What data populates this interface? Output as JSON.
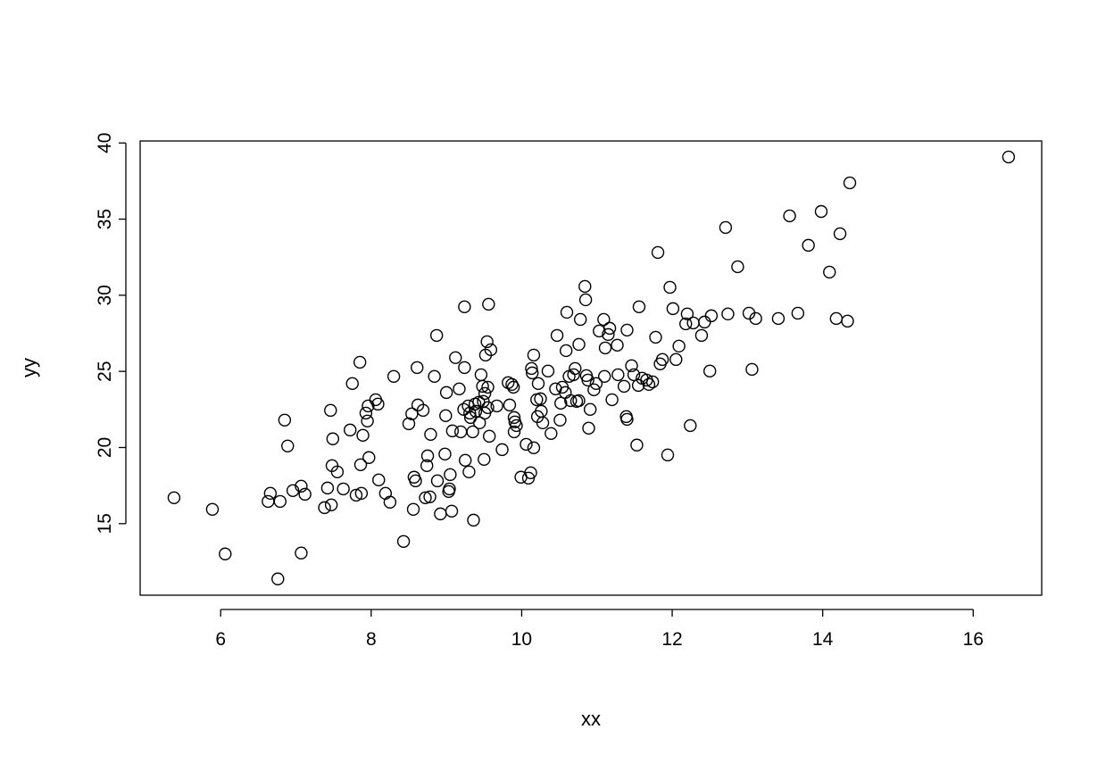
{
  "chart_data": {
    "type": "scatter",
    "title": "",
    "xlabel": "xx",
    "ylabel": "yy",
    "xlim": [
      4.93,
      16.91
    ],
    "ylim": [
      10.3,
      40.13
    ],
    "xticks": [
      6,
      8,
      10,
      12,
      14,
      16
    ],
    "yticks": [
      15,
      20,
      25,
      30,
      35,
      40
    ],
    "xtick_labels": [
      "6",
      "8",
      "10",
      "12",
      "14",
      "16"
    ],
    "ytick_labels": [
      "15",
      "20",
      "25",
      "30",
      "35",
      "40"
    ],
    "grid": false,
    "marker": "open-circle",
    "color": "#000000",
    "x": [
      5.38,
      5.89,
      6.06,
      6.76,
      6.63,
      6.66,
      6.79,
      6.85,
      6.89,
      6.96,
      7.07,
      7.12,
      7.07,
      7.38,
      7.42,
      7.47,
      7.46,
      7.48,
      7.49,
      7.55,
      7.63,
      7.72,
      7.75,
      7.8,
      7.85,
      7.86,
      7.87,
      7.89,
      7.93,
      7.95,
      7.96,
      7.97,
      8.06,
      8.09,
      8.1,
      8.19,
      8.25,
      8.3,
      8.43,
      8.5,
      8.54,
      8.56,
      8.57,
      8.59,
      8.61,
      8.62,
      8.69,
      8.72,
      8.74,
      8.75,
      8.78,
      8.79,
      8.84,
      8.87,
      8.88,
      8.92,
      8.98,
      8.99,
      9.0,
      9.03,
      9.04,
      9.05,
      9.07,
      9.08,
      9.12,
      9.17,
      9.19,
      9.23,
      9.24,
      9.24,
      9.25,
      9.29,
      9.3,
      9.31,
      9.32,
      9.35,
      9.36,
      9.38,
      9.39,
      9.43,
      9.44,
      9.46,
      9.48,
      9.49,
      9.5,
      9.51,
      9.51,
      9.52,
      9.54,
      9.55,
      9.55,
      9.56,
      9.57,
      9.59,
      9.67,
      9.74,
      9.82,
      9.84,
      9.87,
      9.89,
      9.9,
      9.9,
      9.91,
      9.93,
      9.99,
      10.06,
      10.09,
      10.12,
      10.13,
      10.14,
      10.16,
      10.16,
      10.2,
      10.21,
      10.22,
      10.25,
      10.26,
      10.28,
      10.35,
      10.39,
      10.45,
      10.47,
      10.51,
      10.52,
      10.54,
      10.58,
      10.59,
      10.6,
      10.63,
      10.65,
      10.69,
      10.71,
      10.73,
      10.76,
      10.76,
      10.78,
      10.84,
      10.85,
      10.86,
      10.88,
      10.89,
      10.91,
      10.96,
      10.99,
      11.03,
      11.09,
      11.1,
      11.11,
      11.15,
      11.17,
      11.2,
      11.27,
      11.28,
      11.36,
      11.39,
      11.4,
      11.4,
      11.46,
      11.49,
      11.53,
      11.55,
      11.56,
      11.6,
      11.66,
      11.69,
      11.74,
      11.78,
      11.81,
      11.84,
      11.87,
      11.94,
      11.97,
      12.01,
      12.05,
      12.09,
      12.18,
      12.2,
      12.24,
      12.28,
      12.39,
      12.43,
      12.5,
      12.52,
      12.71,
      12.74,
      12.87,
      13.02,
      13.06,
      13.11,
      13.41,
      13.56,
      13.67,
      13.81,
      13.98,
      14.09,
      14.18,
      14.23,
      14.33,
      14.36,
      16.47
    ],
    "y": [
      16.7,
      15.94,
      13.01,
      11.37,
      16.46,
      16.99,
      16.46,
      21.8,
      20.1,
      17.17,
      17.46,
      16.93,
      13.07,
      16.05,
      17.34,
      16.23,
      22.44,
      18.81,
      20.57,
      18.4,
      17.28,
      21.15,
      24.2,
      16.87,
      25.6,
      18.87,
      16.99,
      20.8,
      22.26,
      21.74,
      22.73,
      19.34,
      23.14,
      22.85,
      17.87,
      16.99,
      16.41,
      24.67,
      13.83,
      21.56,
      22.21,
      15.94,
      18.05,
      17.81,
      25.25,
      22.79,
      22.44,
      16.7,
      18.81,
      19.45,
      16.76,
      20.86,
      24.67,
      27.36,
      17.81,
      15.64,
      19.57,
      22.09,
      23.61,
      17.11,
      17.28,
      18.22,
      15.82,
      21.09,
      25.9,
      23.85,
      21.03,
      22.5,
      29.24,
      25.25,
      19.16,
      22.73,
      18.4,
      22.26,
      21.97,
      21.03,
      15.23,
      22.85,
      22.38,
      22.97,
      21.62,
      24.78,
      24.02,
      23.03,
      19.22,
      22.26,
      23.55,
      26.07,
      26.95,
      23.96,
      22.62,
      29.41,
      20.74,
      26.42,
      22.73,
      19.86,
      24.26,
      22.79,
      24.14,
      23.96,
      21.97,
      21.03,
      21.68,
      21.44,
      18.05,
      20.21,
      17.99,
      18.34,
      25.19,
      24.9,
      19.98,
      26.07,
      23.14,
      22.03,
      24.2,
      23.2,
      22.38,
      21.62,
      25.02,
      20.92,
      23.85,
      27.36,
      21.8,
      22.91,
      23.96,
      23.61,
      26.36,
      28.88,
      24.67,
      23.08,
      24.78,
      25.19,
      23.03,
      23.08,
      26.77,
      28.41,
      30.58,
      29.7,
      24.72,
      24.43,
      21.27,
      22.5,
      23.79,
      24.2,
      27.65,
      28.41,
      24.67,
      26.54,
      27.42,
      27.83,
      23.14,
      26.72,
      24.78,
      24.02,
      22.03,
      21.85,
      27.71,
      25.37,
      24.78,
      20.16,
      24.08,
      29.24,
      24.55,
      24.43,
      24.14,
      24.31,
      27.24,
      32.81,
      25.49,
      25.78,
      19.51,
      30.52,
      29.12,
      25.78,
      26.66,
      28.12,
      28.77,
      21.44,
      28.18,
      27.36,
      28.24,
      25.02,
      28.65,
      34.45,
      28.77,
      31.87,
      28.82,
      25.13,
      28.47,
      28.47,
      35.21,
      28.82,
      33.28,
      35.5,
      31.52,
      28.47,
      34.04,
      28.3,
      37.38,
      39.08
    ]
  }
}
